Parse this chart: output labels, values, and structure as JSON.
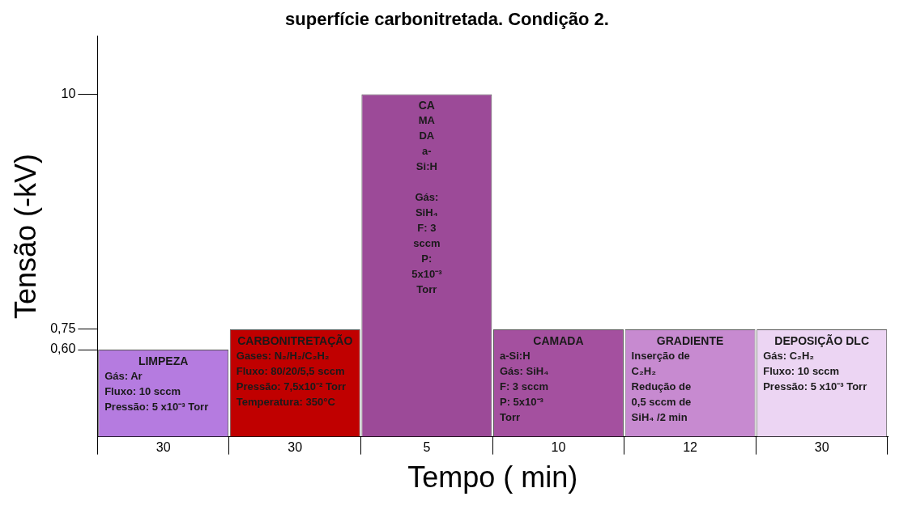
{
  "chart_data": {
    "type": "bar",
    "title": "superfície carbonitretada. Condição 2.",
    "xlabel": "Tempo ( min)",
    "ylabel": "Tensão (-kV)",
    "categories": [
      "30",
      "30",
      "5",
      "10",
      "12",
      "30"
    ],
    "values": [
      0.6,
      0.75,
      10,
      0.75,
      0.75,
      0.75
    ],
    "colors": [
      "#b57be0",
      "#c00000",
      "#9c4a98",
      "#a4509f",
      "#c78ad0",
      "#ecd5f3"
    ],
    "log": "y",
    "ylim": [
      0.23,
      19
    ],
    "yticks": [
      {
        "value": 0.6,
        "label": "0,60"
      },
      {
        "value": 0.75,
        "label": "0,75"
      },
      10
    ],
    "grid": false,
    "legend": false,
    "annotations": [
      "LIMPEZA\nGás: Ar\nFluxo: 10 sccm\nPressão: 5 x10⁻³ Torr",
      "CARBONITRETAÇÃO\nGases: N₂/H₂/C₂H₂\nFluxo: 80/20/5,5 sccm\nPressão: 7,5x10⁻² Torr\nTemperatura: 350°C",
      "CA\nMA\nDA\na-\nSi:H\n\nGás:\nSiH₄\nF: 3\nsccm\nP:\n5x10⁻³\nTorr",
      "CAMADA\na-Si:H\nGás: SiH₄\nF: 3 sccm\nP: 5x10⁻³\nTorr",
      "GRADIENTE\nInserção de\nC₂H₂\nRedução de\n0,5 sccm de\nSiH₄ /2 min",
      "DEPOSIÇÃO DLC\nGás: C₂H₂\nFluxo: 10 sccm\nPressão: 5 x10⁻³ Torr"
    ]
  }
}
